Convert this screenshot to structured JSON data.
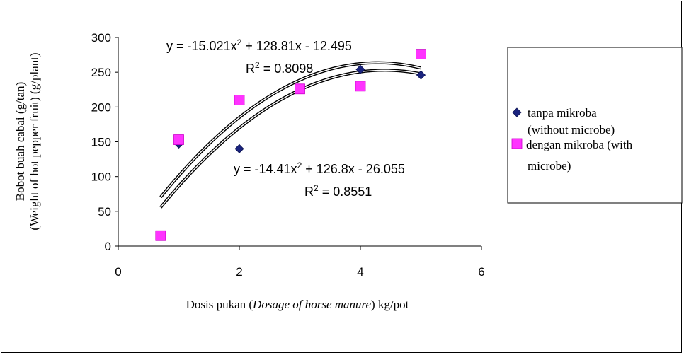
{
  "chart_data": {
    "type": "scatter",
    "xlabel_prefix": "Dosis pukan (",
    "xlabel_italic": "Dosage of horse manure",
    "xlabel_suffix": ") kg/pot",
    "ylabel_line1": "Bobot buah cabai (g/tan)",
    "ylabel_line2": "(Weight of hot pepper fruit) (g/plant)",
    "xlim": [
      0,
      6
    ],
    "ylim": [
      0,
      300
    ],
    "x_ticks": [
      0,
      2,
      4,
      6
    ],
    "y_ticks": [
      0,
      50,
      100,
      150,
      200,
      250,
      300
    ],
    "grid": false,
    "legend_position": "right",
    "series": [
      {
        "name_line1": "tanpa mikroba",
        "name_line2": "(without microbe)",
        "marker": "diamond",
        "color": "#1a237e",
        "points": [
          [
            1,
            147
          ],
          [
            2,
            140
          ],
          [
            3,
            227
          ],
          [
            4,
            254
          ],
          [
            5,
            246
          ]
        ],
        "trendline": {
          "a": -14.41,
          "b": 126.8,
          "c": -26.055,
          "from": 0.7,
          "to": 5
        },
        "equation_prefix": "y = -14.41x",
        "equation_exp": "2",
        "equation_suffix": " + 126.8x - 26.055",
        "r2_prefix": "R",
        "r2_exp": "2",
        "r2_suffix": " = 0.8551"
      },
      {
        "name_line1": "dengan mikroba (with",
        "name_line2": "microbe)",
        "marker": "square",
        "color": "#ff33ff",
        "points": [
          [
            0.7,
            15
          ],
          [
            1,
            153
          ],
          [
            2,
            210
          ],
          [
            3,
            226
          ],
          [
            4,
            230
          ],
          [
            5,
            276
          ]
        ],
        "trendline": {
          "a": -15.021,
          "b": 128.81,
          "c": -12.495,
          "from": 0.7,
          "to": 5
        },
        "equation_prefix": "y = -15.021x",
        "equation_exp": "2",
        "equation_suffix": " + 128.81x - 12.495",
        "r2_prefix": "R",
        "r2_exp": "2",
        "r2_suffix": " = 0.8098"
      }
    ]
  }
}
